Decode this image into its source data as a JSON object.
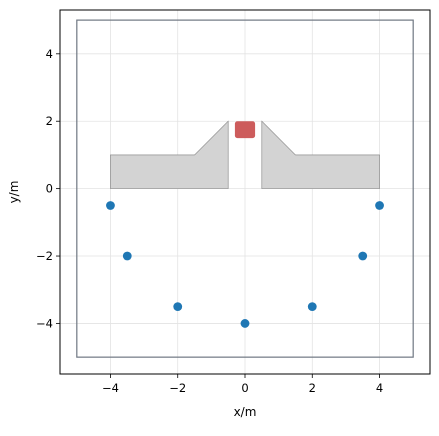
{
  "chart_data": {
    "type": "scatter",
    "xlabel": "x/m",
    "ylabel": "y/m",
    "xlim": [
      -5.5,
      5.5
    ],
    "ylim": [
      -5.5,
      5.3
    ],
    "xticks": [
      -4,
      -2,
      0,
      2,
      4
    ],
    "yticks": [
      -4,
      -2,
      0,
      2,
      4
    ],
    "grid": true,
    "boundary": {
      "x": [
        -5,
        5
      ],
      "y": [
        -5,
        5
      ],
      "color": "#6f7782"
    },
    "obstacles": [
      {
        "name": "left-wall",
        "color": "#d3d3d3",
        "points": [
          [
            -4,
            0
          ],
          [
            -0.5,
            0
          ],
          [
            -0.5,
            2
          ],
          [
            -1.5,
            1
          ],
          [
            -4,
            1
          ]
        ]
      },
      {
        "name": "right-wall",
        "color": "#d3d3d3",
        "points": [
          [
            0.5,
            0
          ],
          [
            4,
            0
          ],
          [
            4,
            1
          ],
          [
            1.5,
            1
          ],
          [
            0.5,
            2
          ]
        ]
      }
    ],
    "target": {
      "x": [
        -0.3,
        0.3
      ],
      "y": [
        1.5,
        2.0
      ],
      "color": "#cd5c5c"
    },
    "series": [
      {
        "color": "#1f77b4",
        "x": [
          -4,
          -3.5,
          -2,
          0,
          2,
          3.5,
          4
        ],
        "y": [
          -0.5,
          -2,
          -3.5,
          -4,
          -3.5,
          -2,
          -0.5
        ]
      }
    ]
  }
}
